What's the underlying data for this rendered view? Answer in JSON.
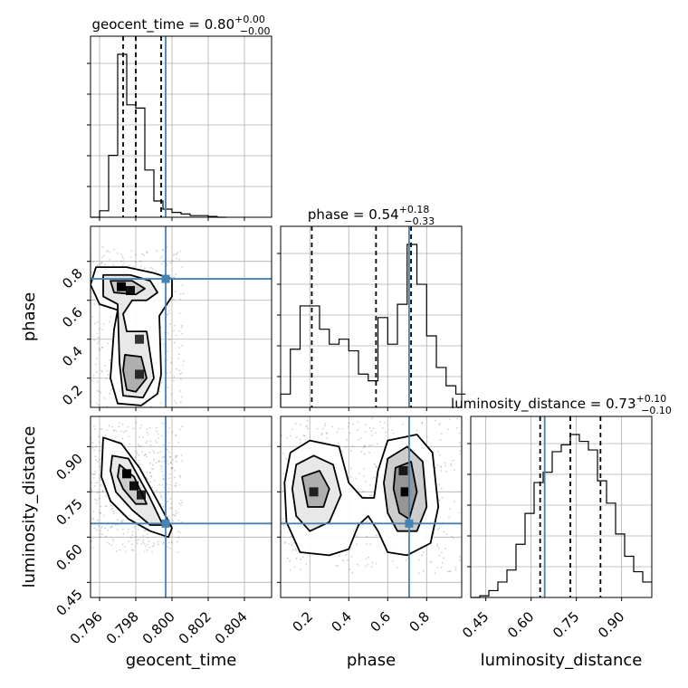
{
  "parameters": [
    {
      "name": "geocent_time",
      "xlabel": "geocent_time",
      "ylabel": "",
      "title": {
        "prefix": "geocent_time = 0.80",
        "sup": "+0.00",
        "sub": "−0.00"
      },
      "range": [
        0.7955,
        0.8055
      ],
      "ticks": [
        0.796,
        0.798,
        0.8,
        0.802,
        0.804
      ],
      "tick_labels": [
        "0.796",
        "0.798",
        "0.800",
        "0.802",
        "0.804"
      ],
      "quantiles": [
        0.7973,
        0.798,
        0.7994
      ],
      "truth": 0.79965
    },
    {
      "name": "phase",
      "xlabel": "phase",
      "ylabel": "phase",
      "title": {
        "prefix": "phase = 0.54",
        "sup": "+0.18",
        "sub": "−0.33"
      },
      "range": [
        0.05,
        0.98
      ],
      "ticks": [
        0.2,
        0.4,
        0.6,
        0.8
      ],
      "tick_labels": [
        "0.2",
        "0.4",
        "0.6",
        "0.8"
      ],
      "quantiles": [
        0.21,
        0.54,
        0.72
      ],
      "truth": 0.71
    },
    {
      "name": "luminosity_distance",
      "xlabel": "luminosity_distance",
      "ylabel": "luminosity_distance",
      "title": {
        "prefix": "luminosity_distance = 0.73",
        "sup": "+0.10",
        "sub": "−0.10"
      },
      "range": [
        0.4,
        1.0
      ],
      "ticks": [
        0.45,
        0.6,
        0.75,
        0.9
      ],
      "tick_labels": [
        "0.45",
        "0.60",
        "0.75",
        "0.90"
      ],
      "quantiles": [
        0.63,
        0.73,
        0.83
      ],
      "truth": 0.645
    }
  ],
  "chart_data": {
    "type": "corner",
    "truth_color": "#4682b4",
    "quantile_style": "dashed",
    "grid": true,
    "histograms": [
      {
        "param": "geocent_time",
        "bin_edges": [
          0.7955,
          0.796,
          0.7965,
          0.797,
          0.7975,
          0.798,
          0.7985,
          0.799,
          0.7995,
          0.8,
          0.8005,
          0.801,
          0.8015,
          0.802,
          0.8025,
          0.803
        ],
        "counts": [
          0.0,
          0.04,
          0.38,
          1.0,
          0.69,
          0.67,
          0.29,
          0.1,
          0.05,
          0.03,
          0.02,
          0.01,
          0.01,
          0.005,
          0.0
        ]
      },
      {
        "param": "phase",
        "bin_edges": [
          0.05,
          0.1,
          0.15,
          0.2,
          0.25,
          0.3,
          0.35,
          0.4,
          0.45,
          0.5,
          0.55,
          0.6,
          0.65,
          0.7,
          0.75,
          0.8,
          0.85,
          0.9,
          0.95,
          1.0
        ],
        "counts": [
          0.08,
          0.35,
          0.61,
          0.61,
          0.47,
          0.38,
          0.41,
          0.34,
          0.2,
          0.16,
          0.54,
          0.38,
          0.62,
          0.98,
          0.74,
          0.43,
          0.24,
          0.13,
          0.08
        ]
      },
      {
        "param": "luminosity_distance",
        "bin_edges": [
          0.4,
          0.43,
          0.46,
          0.49,
          0.52,
          0.55,
          0.58,
          0.61,
          0.64,
          0.67,
          0.7,
          0.73,
          0.76,
          0.79,
          0.82,
          0.85,
          0.88,
          0.91,
          0.94,
          0.97,
          1.0
        ],
        "counts": [
          0.0,
          0.01,
          0.04,
          0.09,
          0.16,
          0.31,
          0.49,
          0.67,
          0.73,
          0.85,
          0.89,
          0.95,
          0.91,
          0.86,
          0.68,
          0.55,
          0.37,
          0.24,
          0.15,
          0.09
        ]
      }
    ],
    "joint": [
      {
        "x": "geocent_time",
        "y": "phase",
        "density_peaks": [
          {
            "x": 0.7972,
            "y": 0.67,
            "level": 1.0
          },
          {
            "x": 0.7977,
            "y": 0.65,
            "level": 0.8
          },
          {
            "x": 0.7982,
            "y": 0.22,
            "level": 0.5
          },
          {
            "x": 0.7982,
            "y": 0.4,
            "level": 0.35
          }
        ],
        "contours": [
          [
            [
              0.7958,
              0.77
            ],
            [
              0.7975,
              0.77
            ],
            [
              0.799,
              0.74
            ],
            [
              0.8,
              0.71
            ],
            [
              0.8,
              0.62
            ],
            [
              0.7993,
              0.52
            ],
            [
              0.7994,
              0.22
            ],
            [
              0.7992,
              0.12
            ],
            [
              0.7983,
              0.06
            ],
            [
              0.797,
              0.07
            ],
            [
              0.7966,
              0.2
            ],
            [
              0.7968,
              0.45
            ],
            [
              0.797,
              0.55
            ],
            [
              0.796,
              0.58
            ],
            [
              0.7955,
              0.68
            ]
          ],
          [
            [
              0.7962,
              0.73
            ],
            [
              0.7977,
              0.73
            ],
            [
              0.7988,
              0.7
            ],
            [
              0.7992,
              0.64
            ],
            [
              0.7986,
              0.6
            ],
            [
              0.7978,
              0.6
            ],
            [
              0.7973,
              0.53
            ],
            [
              0.7975,
              0.44
            ],
            [
              0.7986,
              0.44
            ],
            [
              0.799,
              0.2
            ],
            [
              0.7984,
              0.1
            ],
            [
              0.7973,
              0.11
            ],
            [
              0.7971,
              0.28
            ],
            [
              0.797,
              0.58
            ],
            [
              0.7962,
              0.62
            ]
          ],
          [
            [
              0.7966,
              0.7
            ],
            [
              0.7978,
              0.7
            ],
            [
              0.7985,
              0.66
            ],
            [
              0.798,
              0.63
            ],
            [
              0.7968,
              0.64
            ]
          ],
          [
            [
              0.7974,
              0.32
            ],
            [
              0.7983,
              0.31
            ],
            [
              0.7986,
              0.2
            ],
            [
              0.798,
              0.13
            ],
            [
              0.7975,
              0.14
            ],
            [
              0.7973,
              0.24
            ]
          ]
        ]
      },
      {
        "x": "geocent_time",
        "y": "luminosity_distance",
        "density_peaks": [
          {
            "x": 0.7975,
            "y": 0.81,
            "level": 1.0
          },
          {
            "x": 0.7979,
            "y": 0.77,
            "level": 0.8
          },
          {
            "x": 0.7983,
            "y": 0.74,
            "level": 0.6
          }
        ],
        "contours": [
          [
            [
              0.7962,
              0.93
            ],
            [
              0.7972,
              0.91
            ],
            [
              0.7982,
              0.83
            ],
            [
              0.7992,
              0.72
            ],
            [
              0.8,
              0.63
            ],
            [
              0.7998,
              0.6
            ],
            [
              0.7988,
              0.62
            ],
            [
              0.7976,
              0.66
            ],
            [
              0.7966,
              0.72
            ],
            [
              0.7961,
              0.8
            ]
          ],
          [
            [
              0.7967,
              0.87
            ],
            [
              0.7976,
              0.86
            ],
            [
              0.7987,
              0.74
            ],
            [
              0.7995,
              0.64
            ],
            [
              0.7988,
              0.64
            ],
            [
              0.7978,
              0.69
            ],
            [
              0.7969,
              0.75
            ],
            [
              0.7966,
              0.82
            ]
          ],
          [
            [
              0.7971,
              0.84
            ],
            [
              0.7979,
              0.8
            ],
            [
              0.7986,
              0.71
            ],
            [
              0.798,
              0.71
            ],
            [
              0.7973,
              0.76
            ],
            [
              0.797,
              0.8
            ]
          ]
        ]
      },
      {
        "x": "phase",
        "y": "luminosity_distance",
        "density_peaks": [
          {
            "x": 0.69,
            "y": 0.75,
            "level": 1.0
          },
          {
            "x": 0.68,
            "y": 0.82,
            "level": 0.7
          },
          {
            "x": 0.22,
            "y": 0.75,
            "level": 0.6
          }
        ],
        "contours": [
          [
            [
              0.1,
              0.88
            ],
            [
              0.2,
              0.92
            ],
            [
              0.35,
              0.9
            ],
            [
              0.4,
              0.78
            ],
            [
              0.47,
              0.73
            ],
            [
              0.53,
              0.73
            ],
            [
              0.55,
              0.82
            ],
            [
              0.6,
              0.92
            ],
            [
              0.75,
              0.94
            ],
            [
              0.83,
              0.88
            ],
            [
              0.86,
              0.7
            ],
            [
              0.82,
              0.58
            ],
            [
              0.7,
              0.54
            ],
            [
              0.6,
              0.55
            ],
            [
              0.55,
              0.62
            ],
            [
              0.5,
              0.67
            ],
            [
              0.45,
              0.64
            ],
            [
              0.4,
              0.56
            ],
            [
              0.3,
              0.54
            ],
            [
              0.15,
              0.55
            ],
            [
              0.08,
              0.65
            ],
            [
              0.07,
              0.78
            ]
          ],
          [
            [
              0.13,
              0.84
            ],
            [
              0.22,
              0.87
            ],
            [
              0.32,
              0.84
            ],
            [
              0.36,
              0.74
            ],
            [
              0.3,
              0.65
            ],
            [
              0.2,
              0.62
            ],
            [
              0.13,
              0.67
            ],
            [
              0.11,
              0.76
            ]
          ],
          [
            [
              0.6,
              0.86
            ],
            [
              0.7,
              0.9
            ],
            [
              0.78,
              0.85
            ],
            [
              0.8,
              0.7
            ],
            [
              0.75,
              0.62
            ],
            [
              0.65,
              0.62
            ],
            [
              0.6,
              0.68
            ],
            [
              0.58,
              0.78
            ]
          ],
          [
            [
              0.16,
              0.8
            ],
            [
              0.25,
              0.82
            ],
            [
              0.3,
              0.76
            ],
            [
              0.27,
              0.7
            ],
            [
              0.19,
              0.7
            ]
          ],
          [
            [
              0.64,
              0.83
            ],
            [
              0.72,
              0.85
            ],
            [
              0.75,
              0.75
            ],
            [
              0.71,
              0.66
            ],
            [
              0.66,
              0.68
            ],
            [
              0.63,
              0.76
            ]
          ]
        ]
      }
    ]
  }
}
